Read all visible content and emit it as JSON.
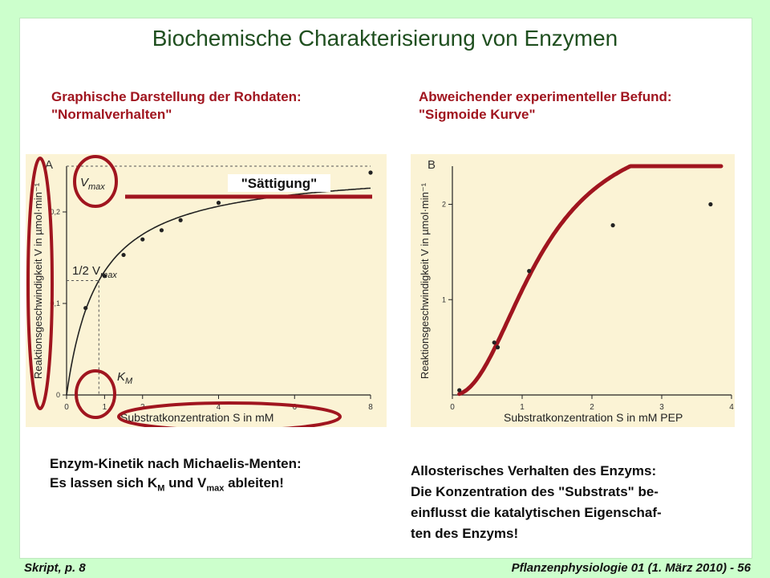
{
  "title": "Biochemische Charakterisierung von Enzymen",
  "left_heading": {
    "line1": "Graphische Darstellung der Rohdaten:",
    "line2": "\"Normalverhalten\""
  },
  "right_heading": {
    "line1": "Abweichender experimenteller Befund:",
    "line2": "\"Sigmoide Kurve\""
  },
  "saturation_label": "\"Sättigung\"",
  "left_caption": {
    "line1": "Enzym-Kinetik nach Michaelis-Menten:",
    "line2_pre": "Es lassen sich K",
    "line2_sub1": "M",
    "line2_mid": " und V",
    "line2_sub2": "max",
    "line2_post": " ableiten!"
  },
  "right_caption": {
    "line1": "Allosterisches Verhalten des Enzyms:",
    "line2": "Die Konzentration des \"Substrats\" be-",
    "line3": "einflusst die katalytischen Eigenschaf-",
    "line4": "ten des Enzyms!"
  },
  "footer_left": "Skript, p. 8",
  "footer_right": "Pflanzenphysiologie 01 (1. März 2010) - 56",
  "colors": {
    "background": "#ccffcc",
    "title": "#1f4f1f",
    "accent": "#a0151f",
    "scan": "#fbf3d5"
  },
  "chart_data": [
    {
      "type": "line",
      "panel": "A",
      "ylabel": "Reaktionsgeschwindigkeit V in µmol·min⁻¹",
      "xlabel": "Substratkonzentration S in mM",
      "x_ticks": [
        "0",
        "1",
        "2",
        "4",
        "6",
        "8"
      ],
      "y_ticks": [
        "0",
        "0,1",
        "0,2"
      ],
      "xlim": [
        0,
        8
      ],
      "ylim": [
        0,
        0.25
      ],
      "annotations": {
        "vmax": "V",
        "vmax_sub": "max",
        "half": "1/2 V",
        "half_sub": "max",
        "km": "K",
        "km_sub": "M"
      },
      "vmax_value": 0.25,
      "km_value": 0.85,
      "points": [
        [
          0.5,
          0.095
        ],
        [
          1.0,
          0.13
        ],
        [
          1.5,
          0.153
        ],
        [
          2.0,
          0.17
        ],
        [
          2.5,
          0.18
        ],
        [
          3.0,
          0.191
        ],
        [
          4.0,
          0.21
        ],
        [
          6.0,
          0.232
        ],
        [
          8.0,
          0.243
        ]
      ]
    },
    {
      "type": "line",
      "panel": "B",
      "ylabel": "Reaktionsgeschwindigkeit V in µmol·min⁻¹",
      "xlabel": "Substratkonzentration S in mM PEP",
      "x_ticks": [
        "0",
        "1",
        "2",
        "3",
        "4"
      ],
      "y_ticks": [
        "1",
        "2"
      ],
      "xlim": [
        0,
        4
      ],
      "ylim": [
        0,
        2.4
      ],
      "points": [
        [
          0.1,
          0.05
        ],
        [
          0.6,
          0.55
        ],
        [
          0.65,
          0.5
        ],
        [
          1.1,
          1.3
        ],
        [
          2.3,
          1.78
        ],
        [
          3.7,
          2.0
        ]
      ]
    }
  ]
}
